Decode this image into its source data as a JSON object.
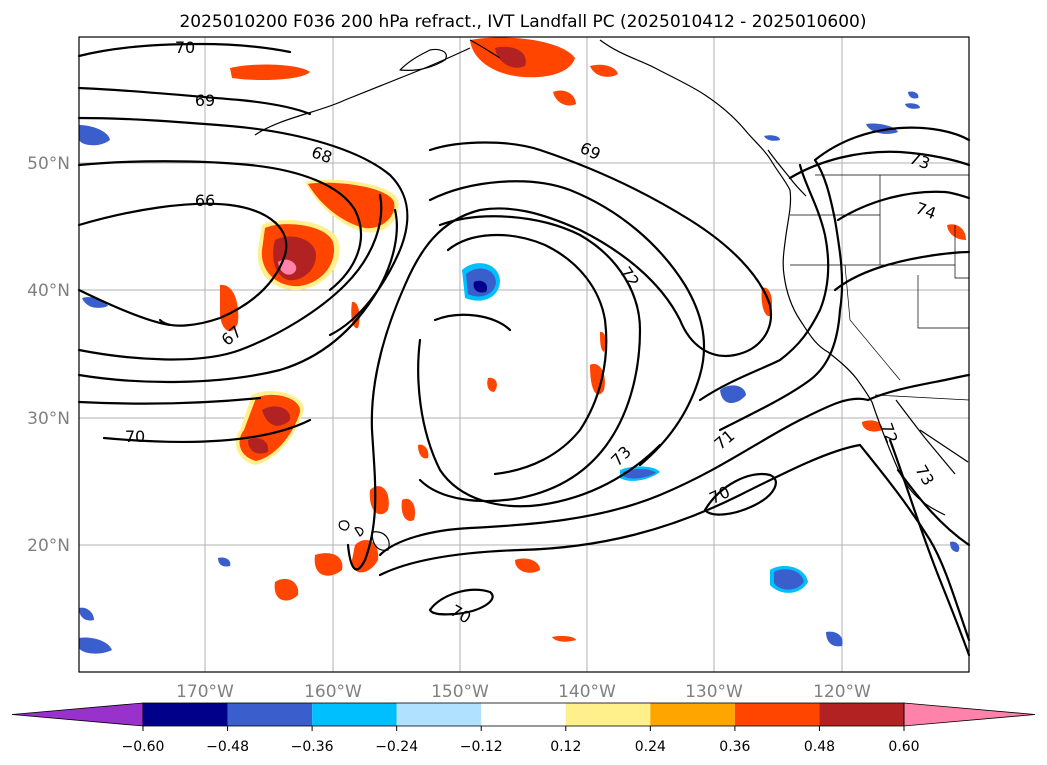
{
  "title": "2025010200 F036 200 hPa refract., IVT Landfall PC (2025010412 - 2025010600)",
  "map": {
    "lat_labels": [
      "50°N",
      "40°N",
      "30°N",
      "20°N"
    ],
    "lon_labels": [
      "170°W",
      "160°W",
      "150°W",
      "140°W",
      "130°W",
      "120°W"
    ],
    "contour_labels": [
      {
        "text": "70"
      },
      {
        "text": "69"
      },
      {
        "text": "68"
      },
      {
        "text": "66"
      },
      {
        "text": "67"
      },
      {
        "text": "70"
      },
      {
        "text": "69"
      },
      {
        "text": "72"
      },
      {
        "text": "73"
      },
      {
        "text": "71"
      },
      {
        "text": "70"
      },
      {
        "text": "70"
      },
      {
        "text": "73"
      },
      {
        "text": "74"
      },
      {
        "text": "72"
      },
      {
        "text": "73"
      }
    ]
  },
  "colorbar": {
    "colors": [
      "#9932cc",
      "#00008b",
      "#3a5fcd",
      "#00bfff",
      "#b0e2ff",
      "#ffffff",
      "#fff08c",
      "#ffa500",
      "#ff4500",
      "#b22222",
      "#ff82ab",
      "#ff82ab"
    ],
    "tick_labels": [
      "−0.60",
      "−0.48",
      "−0.36",
      "−0.24",
      "−0.12",
      "0.12",
      "0.24",
      "0.36",
      "0.48",
      "0.60"
    ]
  },
  "colors": {
    "orange": "#ff4500",
    "darkred": "#b22222",
    "pink": "#ff82ab",
    "yellow": "#fff08c",
    "darkorange": "#ffa500",
    "blue": "#3a5fcd",
    "lightblue": "#00bfff",
    "navy": "#00008b"
  }
}
